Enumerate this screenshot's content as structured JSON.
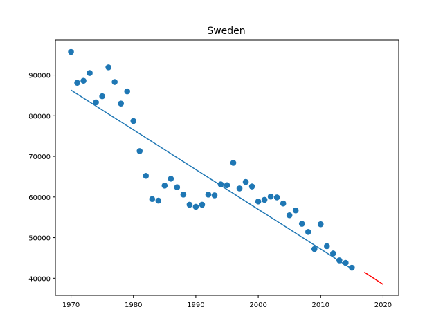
{
  "chart_data": {
    "type": "scatter",
    "title": "Sweden",
    "xlabel": "",
    "ylabel": "",
    "xlim": [
      1967.5,
      2022.5
    ],
    "ylim": [
      35800,
      98600
    ],
    "xticks": [
      1970,
      1980,
      1990,
      2000,
      2010,
      2020
    ],
    "yticks": [
      40000,
      50000,
      60000,
      70000,
      80000,
      90000
    ],
    "xtick_labels": [
      "1970",
      "1980",
      "1990",
      "2000",
      "2010",
      "2020"
    ],
    "ytick_labels": [
      "40000",
      "50000",
      "60000",
      "70000",
      "80000",
      "90000"
    ],
    "grid": false,
    "series": [
      {
        "kind": "scatter",
        "color": "#1f77b4",
        "points": [
          [
            1970,
            95700
          ],
          [
            1971,
            88100
          ],
          [
            1972,
            88600
          ],
          [
            1973,
            90500
          ],
          [
            1974,
            83300
          ],
          [
            1975,
            84800
          ],
          [
            1976,
            91900
          ],
          [
            1977,
            88300
          ],
          [
            1978,
            83000
          ],
          [
            1979,
            86000
          ],
          [
            1980,
            78700
          ],
          [
            1981,
            71300
          ],
          [
            1982,
            65200
          ],
          [
            1983,
            59500
          ],
          [
            1984,
            59100
          ],
          [
            1985,
            62800
          ],
          [
            1986,
            64500
          ],
          [
            1987,
            62400
          ],
          [
            1988,
            60600
          ],
          [
            1989,
            58100
          ],
          [
            1990,
            57600
          ],
          [
            1991,
            58100
          ],
          [
            1992,
            60600
          ],
          [
            1993,
            60400
          ],
          [
            1994,
            63100
          ],
          [
            1995,
            62900
          ],
          [
            1996,
            68400
          ],
          [
            1997,
            62100
          ],
          [
            1998,
            63700
          ],
          [
            1999,
            62600
          ],
          [
            2000,
            58900
          ],
          [
            2001,
            59300
          ],
          [
            2002,
            60100
          ],
          [
            2003,
            59900
          ],
          [
            2004,
            58400
          ],
          [
            2005,
            55500
          ],
          [
            2006,
            56700
          ],
          [
            2007,
            53400
          ],
          [
            2008,
            51400
          ],
          [
            2009,
            47200
          ],
          [
            2010,
            53300
          ],
          [
            2011,
            47900
          ],
          [
            2012,
            46100
          ],
          [
            2013,
            44400
          ],
          [
            2014,
            43800
          ],
          [
            2015,
            42600
          ]
        ]
      },
      {
        "kind": "line",
        "color": "#1f77b4",
        "points": [
          [
            1970,
            86300
          ],
          [
            2015,
            42300
          ]
        ]
      },
      {
        "kind": "line",
        "color": "#ff0000",
        "points": [
          [
            2017,
            41500
          ],
          [
            2020,
            38500
          ]
        ]
      }
    ]
  }
}
